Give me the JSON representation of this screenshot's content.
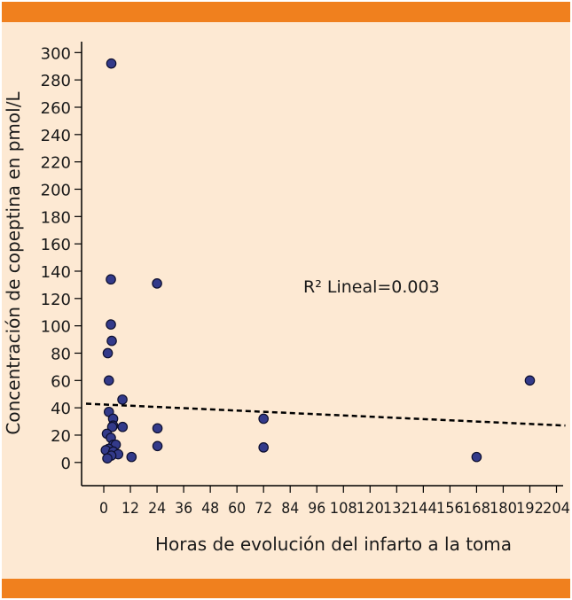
{
  "chart_data": {
    "type": "scatter",
    "ylabel": "Concentración de copeptina en pmol/L",
    "xlabel": "Horas de evolución del infarto a la toma",
    "annotation": "R² Lineal=0.003",
    "xticks": [
      0,
      12,
      24,
      36,
      48,
      60,
      72,
      84,
      96,
      108,
      120,
      132,
      144,
      156,
      168,
      180,
      192,
      204
    ],
    "yticks": [
      0,
      20,
      40,
      60,
      80,
      100,
      120,
      140,
      160,
      180,
      200,
      220,
      240,
      260,
      280,
      300
    ],
    "xlim": [
      -10,
      207
    ],
    "ylim": [
      -17,
      308
    ],
    "points": [
      {
        "x": 3.4,
        "y": 292
      },
      {
        "x": 3.2,
        "y": 134
      },
      {
        "x": 24,
        "y": 131
      },
      {
        "x": 3.2,
        "y": 101
      },
      {
        "x": 3.6,
        "y": 89
      },
      {
        "x": 1.8,
        "y": 80
      },
      {
        "x": 2.3,
        "y": 60
      },
      {
        "x": 8.4,
        "y": 46
      },
      {
        "x": 2.3,
        "y": 37
      },
      {
        "x": 72,
        "y": 32
      },
      {
        "x": 4.2,
        "y": 32
      },
      {
        "x": 4.2,
        "y": 27
      },
      {
        "x": 3.8,
        "y": 26
      },
      {
        "x": 8.5,
        "y": 26
      },
      {
        "x": 24.2,
        "y": 25
      },
      {
        "x": 1.4,
        "y": 21
      },
      {
        "x": 3.2,
        "y": 18
      },
      {
        "x": 4.3,
        "y": 13
      },
      {
        "x": 5.4,
        "y": 13
      },
      {
        "x": 24.2,
        "y": 12
      },
      {
        "x": 72,
        "y": 11
      },
      {
        "x": 2.2,
        "y": 10
      },
      {
        "x": 0.9,
        "y": 9
      },
      {
        "x": 4.3,
        "y": 8
      },
      {
        "x": 6.5,
        "y": 6
      },
      {
        "x": 3.4,
        "y": 5
      },
      {
        "x": 12.5,
        "y": 4
      },
      {
        "x": 1.6,
        "y": 3
      },
      {
        "x": 168,
        "y": 4
      },
      {
        "x": 192,
        "y": 60
      }
    ],
    "trendline": {
      "style": "dashed",
      "x": [
        -8,
        208
      ],
      "y": [
        43,
        27
      ]
    }
  }
}
